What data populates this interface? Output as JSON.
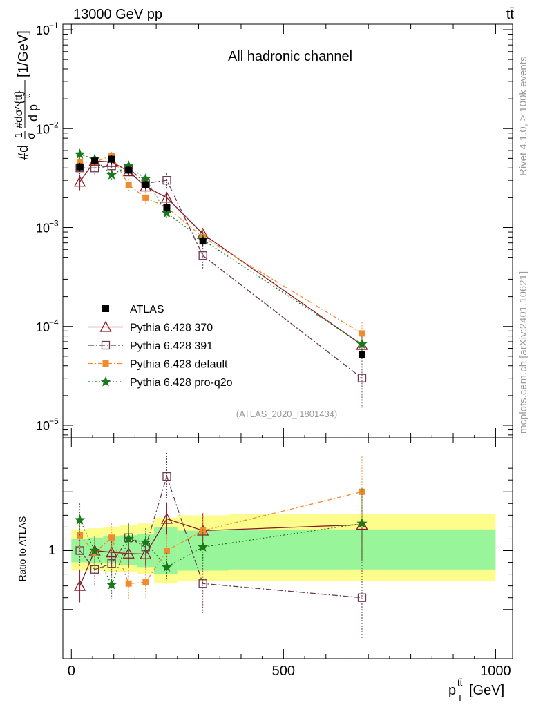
{
  "header": {
    "energy_label": "13000 GeV pp",
    "process_label": "tt̄"
  },
  "side_labels": {
    "rivet": "Rivet 4.1.0, ≥ 100k events",
    "mcplots": "mcplots.cern.ch [arXiv:2401.10621]"
  },
  "colors": {
    "atlas": "#000000",
    "p370": "#8b1a2b",
    "p391": "#6b3a52",
    "default": "#f28a2e",
    "proq2o": "#1a7a1a",
    "band_inner": "#99f599",
    "band_outer": "#fdfd8c"
  },
  "chart_data": {
    "type": "scatter",
    "title": "All hadronic channel",
    "analysis_id": "(ATLAS_2020_I1801434)",
    "xlabel": {
      "main": "p",
      "sub": "T",
      "sup": "tt̄",
      "unit": "[GeV]"
    },
    "ylabel": {
      "prefix": "#d",
      "frac1": "1",
      "over1": "σ",
      "frac2_top": "#dσ^{tt}",
      "frac2_bot": "d p",
      "tsup": "tt̄",
      "unit": "[1/GeV]"
    },
    "ratio_ylabel": "Ratio to ATLAS",
    "xlim": [
      -20,
      1040
    ],
    "ylim": [
      1e-05,
      0.1
    ],
    "ratio_ylim": [
      0.45,
      1.82
    ],
    "xticks": [
      0,
      500,
      1000
    ],
    "xtick_labels": [
      "0",
      "500",
      "1000"
    ],
    "yticks": [
      {
        "base": "10",
        "exp": "−1"
      },
      {
        "base": "10",
        "exp": "−2"
      },
      {
        "base": "10",
        "exp": "−3"
      },
      {
        "base": "10",
        "exp": "−4"
      },
      {
        "base": "10",
        "exp": "−5"
      }
    ],
    "ratio_ytick_label": "1",
    "legend_position": "middle-left",
    "x": [
      20,
      55,
      95,
      135,
      175,
      225,
      310,
      685
    ],
    "bins": [
      [
        0,
        40
      ],
      [
        40,
        75
      ],
      [
        75,
        115
      ],
      [
        115,
        155
      ],
      [
        155,
        195
      ],
      [
        195,
        250
      ],
      [
        250,
        370
      ],
      [
        370,
        1000
      ]
    ],
    "atlas": {
      "name": "ATLAS",
      "values": [
        0.0041,
        0.0047,
        0.0049,
        0.0038,
        0.0027,
        0.0016,
        0.00073,
        5.2e-05
      ]
    },
    "ratio_band": {
      "inner_low": [
        0.9,
        0.89,
        0.89,
        0.88,
        0.86,
        0.8,
        0.83,
        0.84
      ],
      "inner_high": [
        1.1,
        1.11,
        1.12,
        1.13,
        1.14,
        1.2,
        1.17,
        1.18
      ],
      "outer_low": [
        0.83,
        0.83,
        0.82,
        0.82,
        0.8,
        0.72,
        0.74,
        0.74
      ],
      "outer_high": [
        1.18,
        1.19,
        1.2,
        1.22,
        1.23,
        1.28,
        1.3,
        1.31
      ]
    },
    "series": [
      {
        "id": "p370",
        "name": "Pythia 6.428 370",
        "marker": "triangle",
        "dash": "",
        "values": [
          0.0029,
          0.0047,
          0.0046,
          0.0037,
          0.0026,
          0.002,
          0.00086,
          6.5e-05
        ],
        "err": [
          0.18,
          0.1,
          0.08,
          0.1,
          0.1,
          0.12,
          0.15,
          0.2
        ],
        "ratio": [
          0.7,
          1.0,
          0.985,
          0.975,
          0.97,
          1.27,
          1.17,
          1.22
        ],
        "ratio_err": [
          0.14,
          0.12,
          0.12,
          0.12,
          0.12,
          0.14,
          0.15,
          0.3
        ]
      },
      {
        "id": "p391",
        "name": "Pythia 6.428 391",
        "marker": "square-open",
        "dash": "8,3,2,3",
        "values": [
          0.004,
          0.004,
          0.0042,
          0.004,
          0.0028,
          0.003,
          0.00052,
          3e-05
        ],
        "err": [
          0.15,
          0.15,
          0.12,
          0.12,
          0.12,
          0.18,
          0.28,
          0.5
        ],
        "ratio": [
          1.0,
          0.84,
          0.89,
          1.11,
          1.03,
          1.63,
          0.72,
          0.6
        ],
        "ratio_err": [
          0.14,
          0.14,
          0.12,
          0.12,
          0.12,
          0.2,
          0.25,
          0.35
        ]
      },
      {
        "id": "default",
        "name": "Pythia 6.428 default",
        "marker": "square-filled",
        "dash": "6,3,2,3",
        "values": [
          0.0046,
          0.0046,
          0.0053,
          0.0027,
          0.002,
          0.0016,
          0.0008,
          8.5e-05
        ],
        "err": [
          0.12,
          0.12,
          0.1,
          0.15,
          0.15,
          0.15,
          0.2,
          0.3
        ],
        "ratio": [
          1.13,
          0.985,
          1.11,
          0.72,
          0.73,
          1.0,
          1.17,
          1.5
        ],
        "ratio_err": [
          0.12,
          0.12,
          0.12,
          0.14,
          0.14,
          0.14,
          0.15,
          0.3
        ]
      },
      {
        "id": "proq2o",
        "name": "Pythia 6.428 pro-q2o",
        "marker": "star",
        "dash": "2,3",
        "values": [
          0.0055,
          0.0049,
          0.0034,
          0.0042,
          0.0031,
          0.0014,
          0.00075,
          6.6e-05
        ],
        "err": [
          0.12,
          0.1,
          0.12,
          0.12,
          0.12,
          0.12,
          0.2,
          0.2
        ],
        "ratio": [
          1.26,
          1.0,
          0.71,
          1.1,
          1.07,
          0.86,
          1.03,
          1.23
        ],
        "ratio_err": [
          0.14,
          0.12,
          0.12,
          0.12,
          0.12,
          0.12,
          0.15,
          0.3
        ]
      }
    ]
  }
}
